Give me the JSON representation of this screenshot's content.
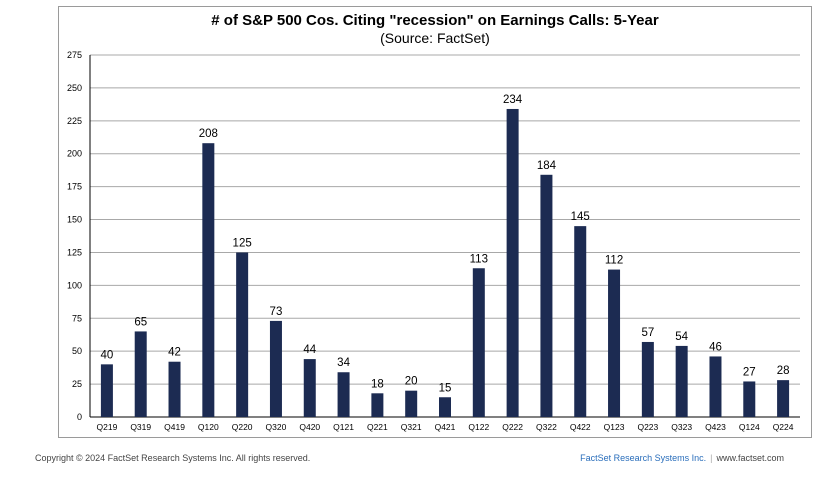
{
  "chart_data": {
    "type": "bar",
    "title": "# of S&P 500 Cos. Citing \"recession\" on Earnings Calls: 5-Year",
    "subtitle": "(Source: FactSet)",
    "categories": [
      "Q219",
      "Q319",
      "Q419",
      "Q120",
      "Q220",
      "Q320",
      "Q420",
      "Q121",
      "Q221",
      "Q321",
      "Q421",
      "Q122",
      "Q222",
      "Q322",
      "Q422",
      "Q123",
      "Q223",
      "Q323",
      "Q423",
      "Q124",
      "Q224"
    ],
    "values": [
      40,
      65,
      42,
      208,
      125,
      73,
      44,
      34,
      18,
      20,
      15,
      113,
      234,
      184,
      145,
      112,
      57,
      54,
      46,
      27,
      28
    ],
    "ylim": [
      0,
      275
    ],
    "yticks": [
      0,
      25,
      50,
      75,
      100,
      125,
      150,
      175,
      200,
      225,
      250,
      275
    ],
    "grid": true,
    "bar_color": "#1c2b52"
  },
  "footer": {
    "copyright": "Copyright © 2024 FactSet Research Systems Inc. All rights reserved.",
    "brand": "FactSet Research Systems Inc.",
    "separator": "|",
    "website": "www.factset.com"
  }
}
